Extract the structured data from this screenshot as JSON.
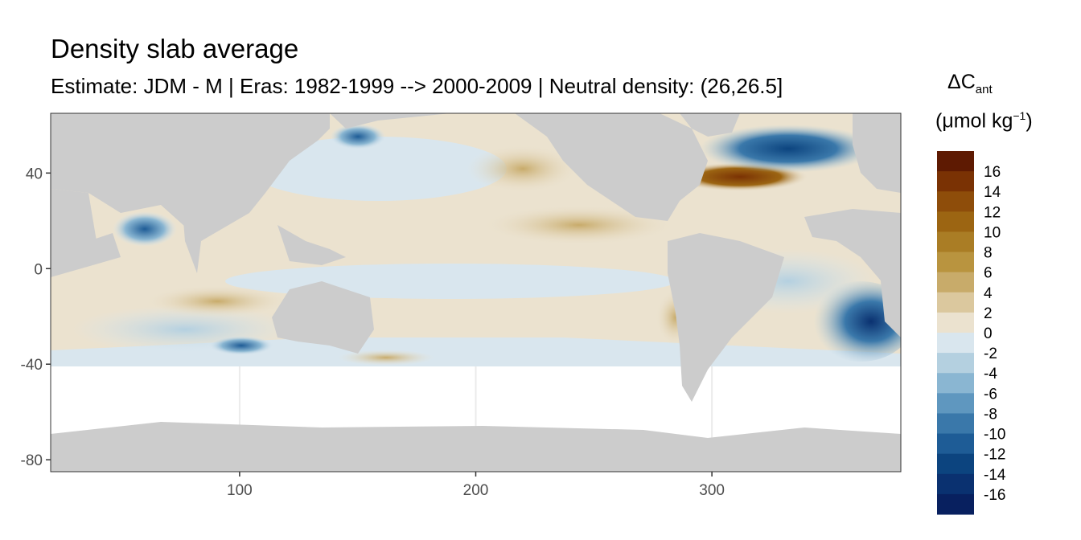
{
  "title": "Density slab average",
  "subtitle": "Estimate: JDM - M | Eras: 1982-1999 --> 2000-2009 | Neutral density: (26,26.5]",
  "legend": {
    "title_main": "ΔC",
    "title_sub": "ant",
    "unit_prefix": "(μmol kg",
    "unit_sup": "−1",
    "unit_suffix": ")",
    "labels": [
      "16",
      "14",
      "12",
      "10",
      "8",
      "6",
      "4",
      "2",
      "0",
      "-2",
      "-4",
      "-6",
      "-8",
      "-10",
      "-12",
      "-14",
      "-16"
    ],
    "colors": [
      "#5e1a02",
      "#7a3204",
      "#8e4d0a",
      "#9c6512",
      "#aa7d25",
      "#b9943f",
      "#c8ab6a",
      "#dbc89e",
      "#ebe2cf",
      "#d9e6ee",
      "#b4d0e0",
      "#8ab6d2",
      "#5f97bf",
      "#3a78aa",
      "#1e5c96",
      "#0c447f",
      "#0a3170",
      "#08205f"
    ]
  },
  "chart_data": {
    "type": "heatmap",
    "title": "Density slab average",
    "subtitle": "Estimate: JDM - M | Eras: 1982-1999 --> 2000-2009 | Neutral density: (26,26.5]",
    "xlabel": "",
    "ylabel": "",
    "xlim": [
      20,
      380
    ],
    "ylim": [
      -85,
      65
    ],
    "x_ticks": [
      100,
      200,
      300
    ],
    "y_ticks": [
      40,
      0,
      -40,
      -80
    ],
    "grid": true,
    "legend_position": "right",
    "value_range": [
      -16,
      16
    ],
    "land_color": "#cccccc",
    "features": [
      {
        "region": "North Atlantic (Gulf Stream)",
        "approx_lon": 290,
        "approx_lat": 38,
        "value": 14
      },
      {
        "region": "Subpolar North Atlantic",
        "approx_lon": 330,
        "approx_lat": 55,
        "value": -10
      },
      {
        "region": "South Atlantic east",
        "approx_lon": 370,
        "approx_lat": -25,
        "value": -14
      },
      {
        "region": "Arabian Sea",
        "approx_lon": 62,
        "approx_lat": 20,
        "value": -8
      },
      {
        "region": "Okhotsk Sea",
        "approx_lon": 145,
        "approx_lat": 55,
        "value": -10
      },
      {
        "region": "North Pacific subtropics",
        "approx_lon": 250,
        "approx_lat": 20,
        "value": 4
      },
      {
        "region": "Peru coast",
        "approx_lon": 285,
        "approx_lat": -25,
        "value": 6
      },
      {
        "region": "Equatorial Pacific",
        "approx_lon": 220,
        "approx_lat": 0,
        "value": -1
      },
      {
        "region": "Southern Indian Ocean",
        "approx_lon": 80,
        "approx_lat": -20,
        "value": 4
      }
    ]
  }
}
